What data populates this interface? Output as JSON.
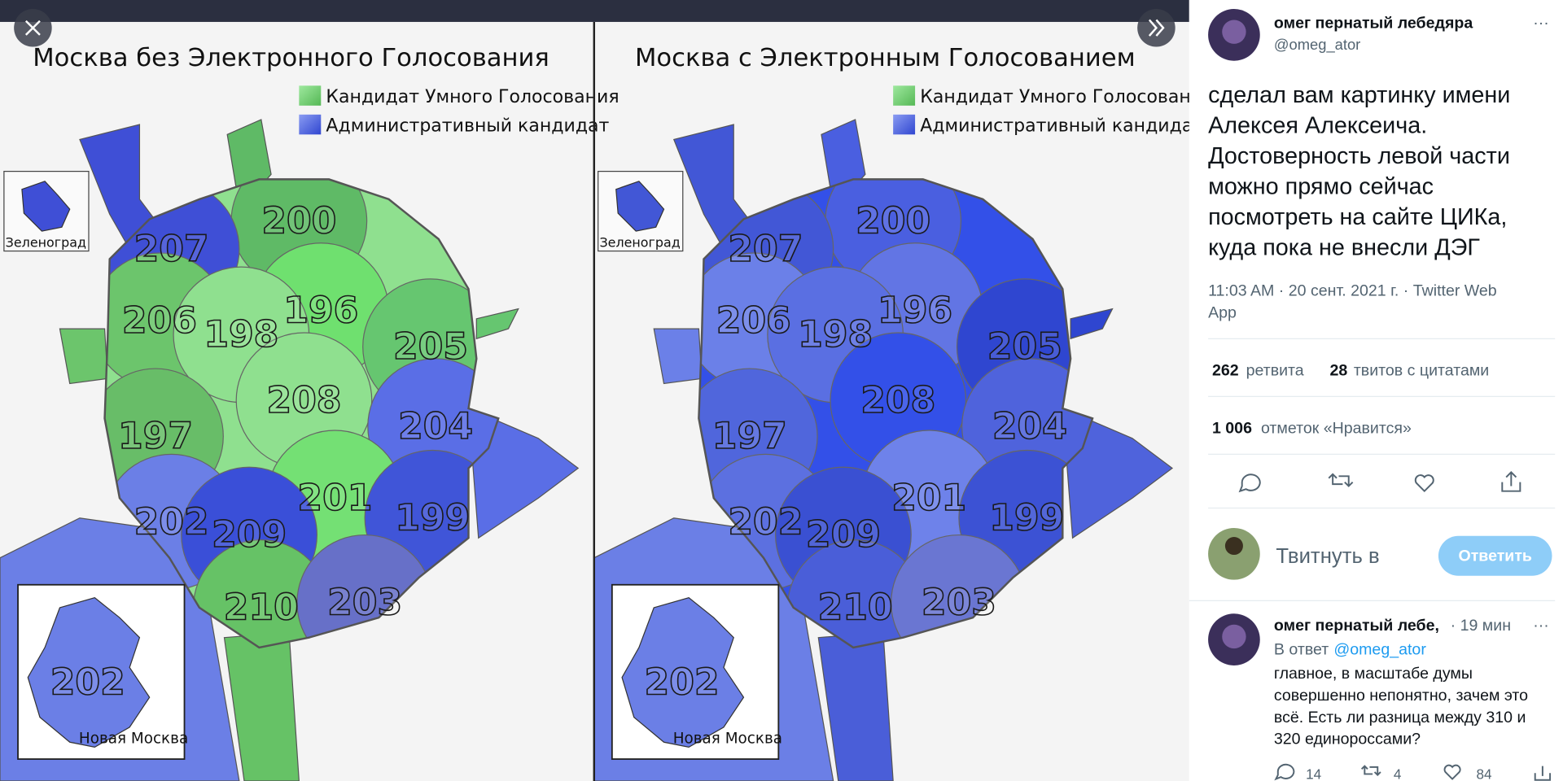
{
  "left_map": {
    "title": "Москва без Электронного Голосования",
    "legend": [
      "Кандидат Умного Голосования",
      "Административный кандидат"
    ],
    "districts": [
      "200",
      "207",
      "196",
      "206",
      "198",
      "205",
      "208",
      "197",
      "204",
      "201",
      "199",
      "202",
      "209",
      "210",
      "203"
    ],
    "inset_top": "Зеленоград",
    "inset_bottom": "Новая Москва",
    "inset_district": "202"
  },
  "right_map": {
    "title": "Москва с Электронным Голосованием",
    "legend": [
      "Кандидат Умного Голосования",
      "Административный кандидат"
    ],
    "districts": [
      "200",
      "207",
      "196",
      "206",
      "198",
      "205",
      "208",
      "197",
      "204",
      "201",
      "199",
      "202",
      "209",
      "210",
      "203"
    ],
    "inset_top": "Зеленоград",
    "inset_bottom": "Новая Москва",
    "inset_district": "202"
  },
  "tweet": {
    "author": "омег пернатый лебедяра",
    "handle": "@omeg_ator",
    "text_lines": [
      "сделал вам картинку имени",
      "Алексея Алексеича.",
      "Достоверность левой части",
      "можно прямо сейчас",
      "посмотреть на сайте ЦИКа,",
      "куда пока не внесли ДЭГ"
    ],
    "meta_lines": [
      "11:03 AM · 20 сент. 2021 г. · Twitter Web",
      "App"
    ],
    "retweets": 262,
    "retweets_label": "ретвита",
    "quotes": 28,
    "quotes_label": "твитов с цитатами",
    "likes": "1 006",
    "likes_label": "отметок «Нравится»"
  },
  "reply_box": {
    "placeholder": "Твитнуть в",
    "button": "Ответить"
  },
  "reply": {
    "author": "омег пернатый лебе,",
    "time": "· 19 мин",
    "in_reply": "В ответ",
    "mention": "@omeg_ator",
    "text_lines": [
      "главное, в масштабе думы",
      "совершенно непонятно, зачем это",
      "всё. Есть ли разница между 310 и",
      "320 единороссами?"
    ],
    "replies": 14,
    "retweets": 4,
    "likes": 84
  }
}
